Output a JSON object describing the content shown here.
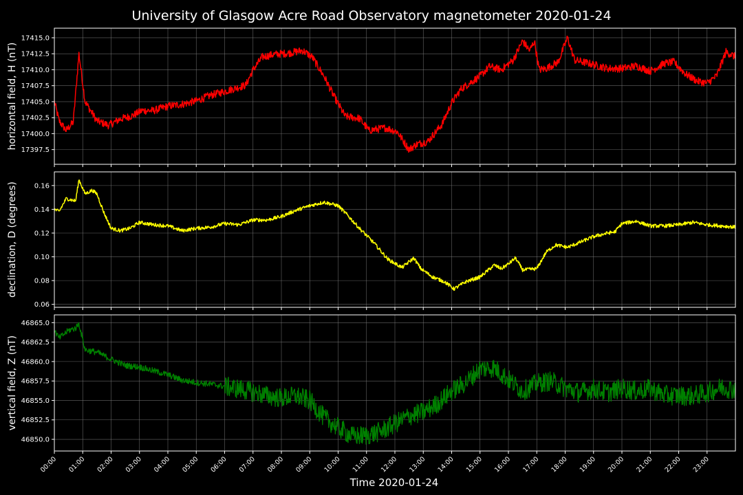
{
  "chart_data": {
    "title": "University of Glasgow Acre Road Observatory magnetometer 2020-01-24",
    "type": "line",
    "xlabel": "Time 2020-01-24",
    "x_ticks": [
      "00:00",
      "01:00",
      "02:00",
      "03:00",
      "04:00",
      "05:00",
      "06:00",
      "07:00",
      "08:00",
      "09:00",
      "10:00",
      "11:00",
      "12:00",
      "13:00",
      "14:00",
      "15:00",
      "16:00",
      "17:00",
      "18:00",
      "19:00",
      "20:00",
      "21:00",
      "22:00",
      "23:00"
    ],
    "x_range": [
      "00:00",
      "24:00"
    ],
    "grid": true,
    "panels": [
      {
        "ylabel": "horizontal field, H (nT)",
        "color": "#ff0000",
        "ylim": [
          17395.2,
          17416.5
        ],
        "yticks": [
          "17397.5",
          "17400.0",
          "17402.5",
          "17405.0",
          "17407.5",
          "17410.0",
          "17412.5",
          "17415.0"
        ],
        "noise": 0.6,
        "series": {
          "name": "H",
          "points": [
            [
              "00:00",
              17405.0
            ],
            [
              "00:10",
              17402.0
            ],
            [
              "00:25",
              17400.5
            ],
            [
              "00:40",
              17401.8
            ],
            [
              "00:52",
              17412.5
            ],
            [
              "01:05",
              17405.0
            ],
            [
              "01:30",
              17402.0
            ],
            [
              "01:55",
              17401.3
            ],
            [
              "02:20",
              17402.3
            ],
            [
              "02:45",
              17402.8
            ],
            [
              "03:05",
              17403.6
            ],
            [
              "03:30",
              17403.6
            ],
            [
              "04:00",
              17404.3
            ],
            [
              "04:30",
              17404.6
            ],
            [
              "05:00",
              17405.1
            ],
            [
              "05:30",
              17406.0
            ],
            [
              "06:00",
              17406.6
            ],
            [
              "06:45",
              17407.6
            ],
            [
              "07:00",
              17410.0
            ],
            [
              "07:20",
              17412.0
            ],
            [
              "07:45",
              17412.4
            ],
            [
              "08:15",
              17412.6
            ],
            [
              "08:45",
              17413.0
            ],
            [
              "09:05",
              17412.0
            ],
            [
              "09:30",
              17409.0
            ],
            [
              "09:50",
              17406.0
            ],
            [
              "10:15",
              17402.7
            ],
            [
              "10:45",
              17402.4
            ],
            [
              "11:05",
              17400.5
            ],
            [
              "11:40",
              17400.9
            ],
            [
              "12:05",
              17400.3
            ],
            [
              "12:30",
              17397.5
            ],
            [
              "12:45",
              17398.3
            ],
            [
              "13:10",
              17398.8
            ],
            [
              "13:40",
              17401.5
            ],
            [
              "14:00",
              17404.8
            ],
            [
              "14:20",
              17407.0
            ],
            [
              "14:40",
              17408.0
            ],
            [
              "15:00",
              17409.0
            ],
            [
              "15:20",
              17410.5
            ],
            [
              "15:45",
              17410.0
            ],
            [
              "16:10",
              17411.5
            ],
            [
              "16:30",
              17414.5
            ],
            [
              "16:45",
              17413.0
            ],
            [
              "16:55",
              17414.5
            ],
            [
              "17:05",
              17410.0
            ],
            [
              "17:20",
              17410.2
            ],
            [
              "17:45",
              17411.2
            ],
            [
              "18:05",
              17415.0
            ],
            [
              "18:20",
              17411.5
            ],
            [
              "18:50",
              17411.0
            ],
            [
              "19:30",
              17410.2
            ],
            [
              "20:00",
              17410.2
            ],
            [
              "20:30",
              17410.6
            ],
            [
              "21:00",
              17409.8
            ],
            [
              "21:30",
              17411.0
            ],
            [
              "21:50",
              17411.2
            ],
            [
              "22:15",
              17409.3
            ],
            [
              "22:40",
              17408.2
            ],
            [
              "23:00",
              17407.9
            ],
            [
              "23:20",
              17409.0
            ],
            [
              "23:40",
              17412.8
            ],
            [
              "24:00",
              17412.0
            ]
          ]
        }
      },
      {
        "ylabel": "declination, D (degrees)",
        "color": "#ffff00",
        "ylim": [
          0.0575,
          0.1715
        ],
        "yticks": [
          "0.06",
          "0.08",
          "0.10",
          "0.12",
          "0.14",
          "0.16"
        ],
        "noise": 0.0015,
        "series": {
          "name": "D",
          "points": [
            [
              "00:00",
              0.14
            ],
            [
              "00:10",
              0.138
            ],
            [
              "00:25",
              0.149
            ],
            [
              "00:45",
              0.147
            ],
            [
              "00:52",
              0.165
            ],
            [
              "01:05",
              0.153
            ],
            [
              "01:20",
              0.156
            ],
            [
              "01:30",
              0.153
            ],
            [
              "01:45",
              0.137
            ],
            [
              "02:00",
              0.124
            ],
            [
              "02:20",
              0.122
            ],
            [
              "02:40",
              0.124
            ],
            [
              "03:00",
              0.129
            ],
            [
              "03:30",
              0.127
            ],
            [
              "04:00",
              0.126
            ],
            [
              "04:30",
              0.122
            ],
            [
              "05:00",
              0.124
            ],
            [
              "05:30",
              0.125
            ],
            [
              "06:00",
              0.128
            ],
            [
              "06:30",
              0.127
            ],
            [
              "07:00",
              0.131
            ],
            [
              "07:30",
              0.131
            ],
            [
              "08:00",
              0.134
            ],
            [
              "08:30",
              0.139
            ],
            [
              "09:00",
              0.143
            ],
            [
              "09:30",
              0.146
            ],
            [
              "10:00",
              0.143
            ],
            [
              "10:20",
              0.135
            ],
            [
              "10:45",
              0.124
            ],
            [
              "11:15",
              0.112
            ],
            [
              "11:45",
              0.098
            ],
            [
              "12:15",
              0.091
            ],
            [
              "12:40",
              0.099
            ],
            [
              "12:55",
              0.09
            ],
            [
              "13:20",
              0.083
            ],
            [
              "13:45",
              0.079
            ],
            [
              "14:05",
              0.073
            ],
            [
              "14:30",
              0.079
            ],
            [
              "15:00",
              0.083
            ],
            [
              "15:30",
              0.093
            ],
            [
              "15:45",
              0.09
            ],
            [
              "16:00",
              0.094
            ],
            [
              "16:15",
              0.099
            ],
            [
              "16:30",
              0.089
            ],
            [
              "17:00",
              0.09
            ],
            [
              "17:20",
              0.104
            ],
            [
              "17:40",
              0.11
            ],
            [
              "18:05",
              0.108
            ],
            [
              "18:30",
              0.112
            ],
            [
              "19:00",
              0.117
            ],
            [
              "19:30",
              0.12
            ],
            [
              "19:45",
              0.121
            ],
            [
              "20:00",
              0.128
            ],
            [
              "20:30",
              0.13
            ],
            [
              "21:00",
              0.126
            ],
            [
              "21:30",
              0.126
            ],
            [
              "22:00",
              0.127
            ],
            [
              "22:30",
              0.129
            ],
            [
              "23:00",
              0.127
            ],
            [
              "23:30",
              0.126
            ],
            [
              "24:00",
              0.125
            ]
          ]
        }
      },
      {
        "ylabel": "vertical field, Z (nT)",
        "color": "#008000",
        "ylim": [
          46848.5,
          46866.0
        ],
        "yticks": [
          "46850.0",
          "46852.5",
          "46855.0",
          "46857.5",
          "46860.0",
          "46862.5",
          "46865.0"
        ],
        "noise": 0.4,
        "series": {
          "name": "Z",
          "points": [
            [
              "00:00",
              46864.0
            ],
            [
              "00:10",
              46863.0
            ],
            [
              "00:30",
              46864.0
            ],
            [
              "00:45",
              46864.3
            ],
            [
              "00:52",
              46864.9
            ],
            [
              "01:05",
              46861.5
            ],
            [
              "01:30",
              46861.2
            ],
            [
              "02:00",
              46860.3
            ],
            [
              "02:30",
              46859.5
            ],
            [
              "03:00",
              46859.3
            ],
            [
              "03:30",
              46858.8
            ],
            [
              "04:00",
              46858.3
            ],
            [
              "04:30",
              46857.6
            ],
            [
              "05:00",
              46857.3
            ],
            [
              "05:30",
              46857.1
            ],
            [
              "06:00",
              46856.8
            ],
            [
              "06:30",
              46856.5
            ],
            [
              "07:00",
              46856.1
            ],
            [
              "07:30",
              46855.6
            ],
            [
              "08:00",
              46855.3
            ],
            [
              "08:30",
              46855.6
            ],
            [
              "09:00",
              46855.0
            ],
            [
              "09:30",
              46852.8
            ],
            [
              "10:00",
              46851.5
            ],
            [
              "10:30",
              46850.4
            ],
            [
              "11:00",
              46850.5
            ],
            [
              "11:30",
              46851.0
            ],
            [
              "12:00",
              46852.0
            ],
            [
              "12:30",
              46853.0
            ],
            [
              "13:00",
              46853.5
            ],
            [
              "13:30",
              46854.6
            ],
            [
              "14:00",
              46856.2
            ],
            [
              "14:30",
              46857.3
            ],
            [
              "15:00",
              46859.1
            ],
            [
              "15:30",
              46859.2
            ],
            [
              "16:00",
              46857.7
            ],
            [
              "16:30",
              46856.2
            ],
            [
              "17:00",
              46857.2
            ],
            [
              "17:30",
              46857.5
            ],
            [
              "18:00",
              46856.6
            ],
            [
              "18:30",
              46856.0
            ],
            [
              "19:00",
              46856.5
            ],
            [
              "19:30",
              46856.0
            ],
            [
              "20:00",
              46856.6
            ],
            [
              "20:30",
              46856.2
            ],
            [
              "21:00",
              46856.5
            ],
            [
              "21:30",
              46855.7
            ],
            [
              "22:00",
              46855.6
            ],
            [
              "22:30",
              46855.6
            ],
            [
              "23:00",
              46856.0
            ],
            [
              "23:30",
              46856.7
            ],
            [
              "24:00",
              46856.4
            ]
          ]
        }
      }
    ]
  }
}
